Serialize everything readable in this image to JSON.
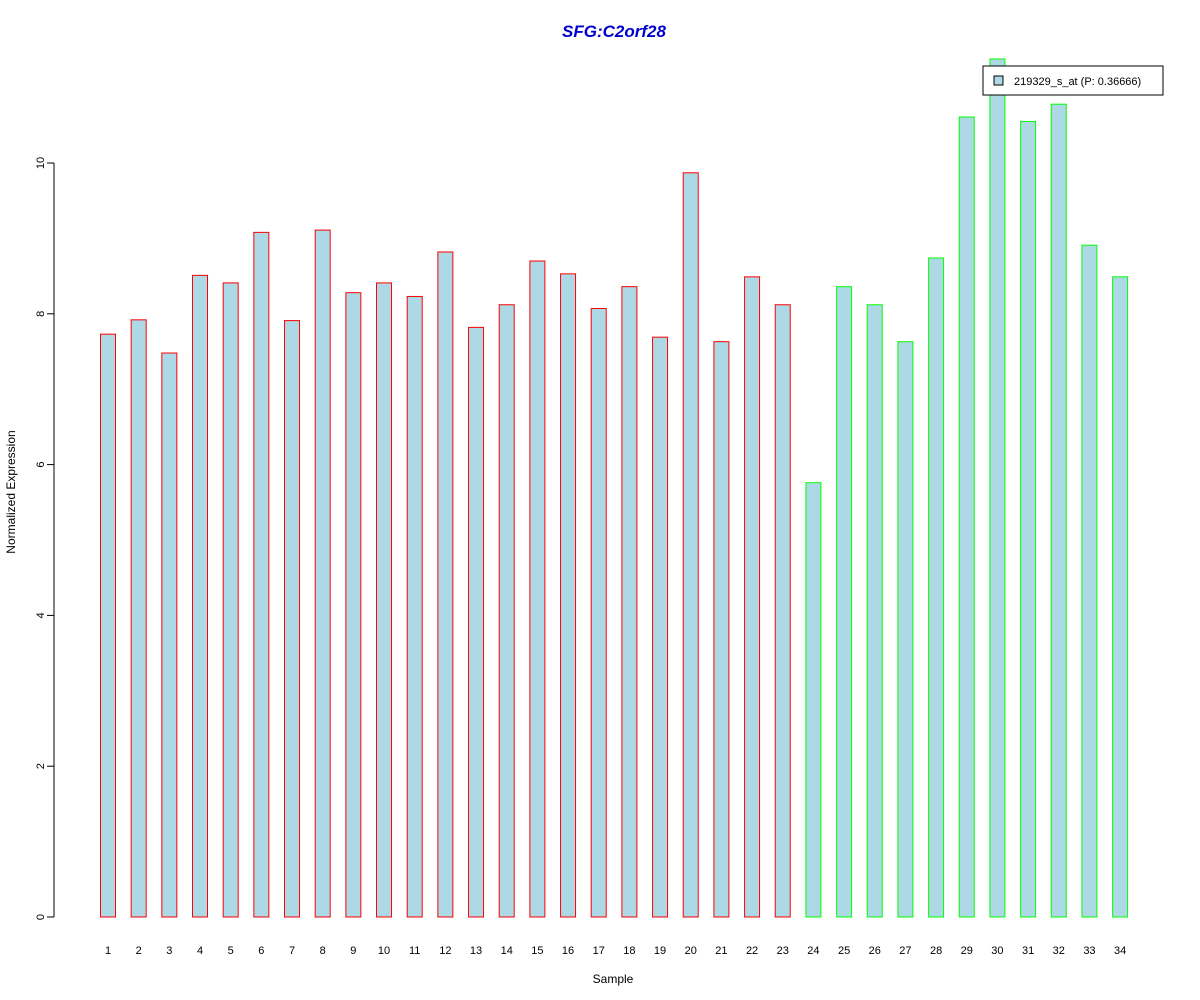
{
  "chart_data": {
    "type": "bar",
    "title": "SFG:C2orf28",
    "xlabel": "Sample",
    "ylabel": "Normalized Expression",
    "ylim": [
      0,
      11.4
    ],
    "yticks": [
      0,
      2,
      4,
      6,
      8,
      10
    ],
    "ytick_labels": [
      "0",
      "2",
      "4",
      "6",
      "8",
      "10"
    ],
    "grid": false,
    "legend_position": "top-right",
    "categories": [
      "1",
      "2",
      "3",
      "4",
      "5",
      "6",
      "7",
      "8",
      "9",
      "10",
      "11",
      "12",
      "13",
      "14",
      "15",
      "16",
      "17",
      "18",
      "19",
      "20",
      "21",
      "22",
      "23",
      "24",
      "25",
      "26",
      "27",
      "28",
      "29",
      "30",
      "31",
      "32",
      "33",
      "34"
    ],
    "series": [
      {
        "name": "219329_s_at (P: 0.36666)",
        "values": [
          7.73,
          7.92,
          7.48,
          8.51,
          8.41,
          9.08,
          7.91,
          9.11,
          8.28,
          8.41,
          8.23,
          8.82,
          7.82,
          8.12,
          8.7,
          8.53,
          8.07,
          8.36,
          7.69,
          9.87,
          7.63,
          8.49,
          8.12,
          5.76,
          8.36,
          8.12,
          7.63,
          8.74,
          10.61,
          11.38,
          10.55,
          10.78,
          8.91,
          8.49
        ]
      }
    ],
    "groups": [
      1,
      1,
      1,
      1,
      1,
      1,
      1,
      1,
      1,
      1,
      1,
      1,
      1,
      1,
      1,
      1,
      1,
      1,
      1,
      1,
      1,
      1,
      1,
      2,
      2,
      2,
      2,
      2,
      2,
      2,
      2,
      2,
      2,
      2
    ]
  },
  "colors": {
    "bar_fill": "#add8e6",
    "group_1_border": "#ff0000",
    "group_2_border": "#00ff00",
    "title": "#0000cc",
    "axis": "#000000"
  }
}
